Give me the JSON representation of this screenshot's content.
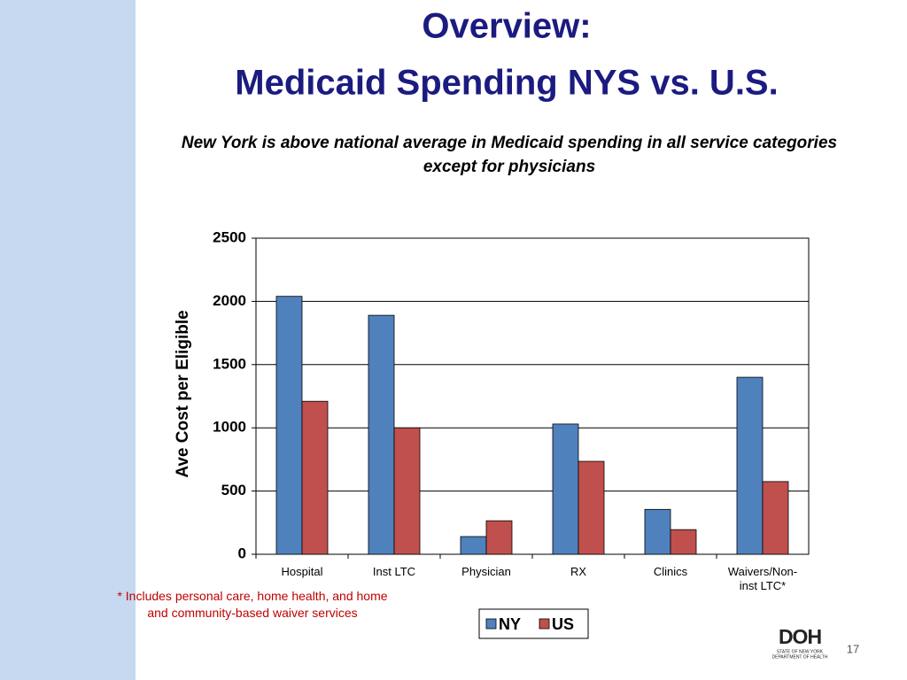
{
  "header": {
    "title_line1": "Overview:",
    "title_line2": "Medicaid Spending NYS vs. U.S.",
    "subtitle": "New York is above national average in Medicaid spending in all service categories except for physicians"
  },
  "chart_data": {
    "type": "bar",
    "y_label": "Ave Cost per Eligible",
    "categories": [
      "Hospital",
      "Inst LTC",
      "Physician",
      "RX",
      "Clinics",
      "Waivers/Non-inst LTC*"
    ],
    "series": [
      {
        "name": "NY",
        "color": "#4f81bd",
        "values": [
          2040,
          1890,
          140,
          1030,
          355,
          1400
        ]
      },
      {
        "name": "US",
        "color": "#c0504d",
        "values": [
          1210,
          1000,
          265,
          735,
          195,
          575
        ]
      }
    ],
    "ylim": [
      0,
      2500
    ],
    "yticks": [
      0,
      500,
      1000,
      1500,
      2000,
      2500
    ],
    "grid": true,
    "legend": "bottom"
  },
  "footnote": "*  Includes personal care, home health, and home and community-based waiver services",
  "logo": {
    "mark": "DOH",
    "line1": "STATE OF NEW YORK",
    "line2": "DEPARTMENT OF HEALTH"
  },
  "page_number": "17"
}
